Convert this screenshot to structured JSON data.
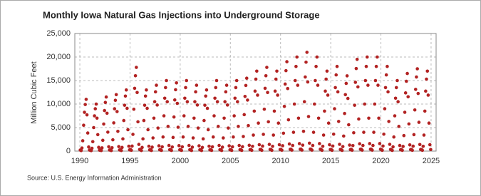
{
  "chart_data": {
    "type": "scatter",
    "title": "Monthly Iowa Natural Gas Injections into Underground Storage",
    "y_label": "Million Cubic Feet",
    "source": "Source: U.S. Energy Information Administration",
    "color": "#b22222",
    "grid": true,
    "xlim": [
      1989.5,
      2025.5
    ],
    "xticks": [
      1990,
      1995,
      2000,
      2005,
      2010,
      2015,
      2020,
      2025
    ],
    "ylim": [
      0,
      25000
    ],
    "yticks": [
      0,
      {
        "value": 5000,
        "label": "5,000"
      },
      {
        "value": 10000,
        "label": "10,000"
      },
      {
        "value": 15000,
        "label": "15,000"
      },
      {
        "value": 20000,
        "label": "20,000"
      },
      {
        "value": 25000,
        "label": "25,000"
      }
    ],
    "x": [
      1990.04,
      1990.13,
      1990.21,
      1990.29,
      1990.38,
      1990.46,
      1990.54,
      1990.63,
      1990.71,
      1990.79,
      1990.88,
      1990.96,
      1991.04,
      1991.13,
      1991.21,
      1991.29,
      1991.38,
      1991.46,
      1991.54,
      1991.63,
      1991.71,
      1991.79,
      1991.88,
      1991.96,
      1992.04,
      1992.13,
      1992.21,
      1992.29,
      1992.38,
      1992.46,
      1992.54,
      1992.63,
      1992.71,
      1992.79,
      1992.88,
      1992.96,
      1993.04,
      1993.13,
      1993.21,
      1993.29,
      1993.38,
      1993.46,
      1993.54,
      1993.63,
      1993.71,
      1993.79,
      1993.88,
      1993.96,
      1994.04,
      1994.13,
      1994.21,
      1994.29,
      1994.38,
      1994.46,
      1994.54,
      1994.63,
      1994.71,
      1994.79,
      1994.88,
      1994.96,
      1995.04,
      1995.13,
      1995.21,
      1995.29,
      1995.38,
      1995.46,
      1995.54,
      1995.63,
      1995.71,
      1995.79,
      1995.88,
      1995.96,
      1996.04,
      1996.13,
      1996.21,
      1996.29,
      1996.38,
      1996.46,
      1996.54,
      1996.63,
      1996.71,
      1996.79,
      1996.88,
      1996.96,
      1997.04,
      1997.13,
      1997.21,
      1997.29,
      1997.38,
      1997.46,
      1997.54,
      1997.63,
      1997.71,
      1997.79,
      1997.88,
      1997.96,
      1998.04,
      1998.13,
      1998.21,
      1998.29,
      1998.38,
      1998.46,
      1998.54,
      1998.63,
      1998.71,
      1998.79,
      1998.88,
      1998.96,
      1999.04,
      1999.13,
      1999.21,
      1999.29,
      1999.38,
      1999.46,
      1999.54,
      1999.63,
      1999.71,
      1999.79,
      1999.88,
      1999.96,
      2000.04,
      2000.13,
      2000.21,
      2000.29,
      2000.38,
      2000.46,
      2000.54,
      2000.63,
      2000.71,
      2000.79,
      2000.88,
      2000.96,
      2001.04,
      2001.13,
      2001.21,
      2001.29,
      2001.38,
      2001.46,
      2001.54,
      2001.63,
      2001.71,
      2001.79,
      2001.88,
      2001.96,
      2002.04,
      2002.13,
      2002.21,
      2002.29,
      2002.38,
      2002.46,
      2002.54,
      2002.63,
      2002.71,
      2002.79,
      2002.88,
      2002.96,
      2003.04,
      2003.13,
      2003.21,
      2003.29,
      2003.38,
      2003.46,
      2003.54,
      2003.63,
      2003.71,
      2003.79,
      2003.88,
      2003.96,
      2004.04,
      2004.13,
      2004.21,
      2004.29,
      2004.38,
      2004.46,
      2004.54,
      2004.63,
      2004.71,
      2004.79,
      2004.88,
      2004.96,
      2005.04,
      2005.13,
      2005.21,
      2005.29,
      2005.38,
      2005.46,
      2005.54,
      2005.63,
      2005.71,
      2005.79,
      2005.88,
      2005.96,
      2006.04,
      2006.13,
      2006.21,
      2006.29,
      2006.38,
      2006.46,
      2006.54,
      2006.63,
      2006.71,
      2006.79,
      2006.88,
      2006.96,
      2007.04,
      2007.13,
      2007.21,
      2007.29,
      2007.38,
      2007.46,
      2007.54,
      2007.63,
      2007.71,
      2007.79,
      2007.88,
      2007.96,
      2008.04,
      2008.13,
      2008.21,
      2008.29,
      2008.38,
      2008.46,
      2008.54,
      2008.63,
      2008.71,
      2008.79,
      2008.88,
      2008.96,
      2009.04,
      2009.13,
      2009.21,
      2009.29,
      2009.38,
      2009.46,
      2009.54,
      2009.63,
      2009.71,
      2009.79,
      2009.88,
      2009.96,
      2010.04,
      2010.13,
      2010.21,
      2010.29,
      2010.38,
      2010.46,
      2010.54,
      2010.63,
      2010.71,
      2010.79,
      2010.88,
      2010.96,
      2011.04,
      2011.13,
      2011.21,
      2011.29,
      2011.38,
      2011.46,
      2011.54,
      2011.63,
      2011.71,
      2011.79,
      2011.88,
      2011.96,
      2012.04,
      2012.13,
      2012.21,
      2012.29,
      2012.38,
      2012.46,
      2012.54,
      2012.63,
      2012.71,
      2012.79,
      2012.88,
      2012.96,
      2013.04,
      2013.13,
      2013.21,
      2013.29,
      2013.38,
      2013.46,
      2013.54,
      2013.63,
      2013.71,
      2013.79,
      2013.88,
      2013.96,
      2014.04,
      2014.13,
      2014.21,
      2014.29,
      2014.38,
      2014.46,
      2014.54,
      2014.63,
      2014.71,
      2014.79,
      2014.88,
      2014.96,
      2015.04,
      2015.13,
      2015.21,
      2015.29,
      2015.38,
      2015.46,
      2015.54,
      2015.63,
      2015.71,
      2015.79,
      2015.88,
      2015.96,
      2016.04,
      2016.13,
      2016.21,
      2016.29,
      2016.38,
      2016.46,
      2016.54,
      2016.63,
      2016.71,
      2016.79,
      2016.88,
      2016.96,
      2017.04,
      2017.13,
      2017.21,
      2017.29,
      2017.38,
      2017.46,
      2017.54,
      2017.63,
      2017.71,
      2017.79,
      2017.88,
      2017.96,
      2018.04,
      2018.13,
      2018.21,
      2018.29,
      2018.38,
      2018.46,
      2018.54,
      2018.63,
      2018.71,
      2018.79,
      2018.88,
      2018.96,
      2019.04,
      2019.13,
      2019.21,
      2019.29,
      2019.38,
      2019.46,
      2019.54,
      2019.63,
      2019.71,
      2019.79,
      2019.88,
      2019.96,
      2020.04,
      2020.13,
      2020.21,
      2020.29,
      2020.38,
      2020.46,
      2020.54,
      2020.63,
      2020.71,
      2020.79,
      2020.88,
      2020.96,
      2021.04,
      2021.13,
      2021.21,
      2021.29,
      2021.38,
      2021.46,
      2021.54,
      2021.63,
      2021.71,
      2021.79,
      2021.88,
      2021.96,
      2022.04,
      2022.13,
      2022.21,
      2022.29,
      2022.38,
      2022.46,
      2022.54,
      2022.63,
      2022.71,
      2022.79,
      2022.88,
      2022.96,
      2023.04,
      2023.13,
      2023.21,
      2023.29,
      2023.38,
      2023.46,
      2023.54,
      2023.63,
      2023.71,
      2023.79,
      2023.88,
      2023.96,
      2024.04,
      2024.13,
      2024.21,
      2024.29,
      2024.38,
      2024.46,
      2024.54,
      2024.63,
      2024.71,
      2024.79,
      2024.88,
      2024.96
    ],
    "values": [
      220,
      110,
      660,
      2200,
      5500,
      8250,
      9900,
      11000,
      7700,
      3850,
      880,
      220,
      200,
      100,
      600,
      2000,
      5000,
      7500,
      9000,
      10000,
      7000,
      3500,
      800,
      200,
      230,
      115,
      690,
      2300,
      5750,
      8625,
      10350,
      11500,
      8050,
      4025,
      920,
      230,
      240,
      120,
      720,
      2400,
      6000,
      9000,
      10800,
      12000,
      8400,
      4200,
      960,
      240,
      260,
      130,
      780,
      2600,
      6500,
      9750,
      11700,
      13000,
      9100,
      4550,
      1040,
      260,
      356,
      178,
      1068,
      3560,
      8900,
      13350,
      16020,
      17800,
      12460,
      6230,
      1424,
      356,
      260,
      130,
      780,
      2600,
      6500,
      9750,
      11700,
      13000,
      9100,
      4550,
      1040,
      260,
      280,
      140,
      840,
      2800,
      7000,
      10500,
      12600,
      14000,
      9800,
      4900,
      1120,
      280,
      300,
      150,
      900,
      3000,
      7500,
      11250,
      13500,
      15000,
      10500,
      5250,
      1200,
      300,
      290,
      145,
      870,
      2900,
      7250,
      10875,
      13050,
      14500,
      10150,
      5075,
      1160,
      290,
      300,
      150,
      900,
      3000,
      7500,
      11250,
      13500,
      15000,
      10500,
      5250,
      1200,
      300,
      280,
      140,
      840,
      2800,
      7000,
      10500,
      12600,
      14000,
      9800,
      4900,
      1120,
      280,
      260,
      130,
      780,
      2600,
      6500,
      9750,
      11700,
      13000,
      9100,
      4550,
      1040,
      260,
      300,
      150,
      900,
      3000,
      7500,
      11250,
      13500,
      15000,
      10500,
      5250,
      1200,
      300,
      280,
      140,
      840,
      2800,
      7000,
      10500,
      12600,
      14000,
      9800,
      4900,
      1120,
      280,
      300,
      150,
      900,
      3000,
      7500,
      11250,
      13500,
      15000,
      10500,
      5250,
      1200,
      300,
      310,
      155,
      930,
      3100,
      7750,
      11625,
      13950,
      15500,
      10850,
      5425,
      1240,
      310,
      340,
      170,
      1020,
      3400,
      8500,
      12750,
      15300,
      17000,
      11900,
      5950,
      1360,
      340,
      356,
      178,
      1068,
      3560,
      8900,
      13350,
      16020,
      17800,
      12460,
      6230,
      1424,
      356,
      340,
      170,
      1020,
      3400,
      8500,
      12750,
      15300,
      17000,
      11900,
      5950,
      1360,
      340,
      380,
      190,
      1140,
      3800,
      9500,
      14250,
      17100,
      19000,
      13300,
      6650,
      1520,
      380,
      400,
      200,
      1200,
      4000,
      10000,
      15000,
      18000,
      20000,
      14000,
      7000,
      1600,
      400,
      420,
      210,
      1260,
      4200,
      10500,
      15750,
      18900,
      21000,
      14700,
      7350,
      1680,
      420,
      400,
      200,
      1200,
      4000,
      10000,
      15000,
      18000,
      20000,
      14000,
      7000,
      1600,
      400,
      340,
      170,
      1020,
      3400,
      8500,
      12750,
      15300,
      17000,
      11900,
      5950,
      1360,
      340,
      360,
      180,
      1080,
      3600,
      9000,
      13500,
      16200,
      18000,
      12600,
      6300,
      1440,
      360,
      320,
      160,
      960,
      3200,
      8000,
      12000,
      14400,
      16000,
      11200,
      5600,
      1280,
      320,
      390,
      195,
      1170,
      3900,
      9750,
      14625,
      17550,
      19500,
      13650,
      6825,
      1560,
      390,
      400,
      200,
      1200,
      4000,
      10000,
      15000,
      18000,
      20000,
      14000,
      7000,
      1600,
      400,
      400,
      200,
      1200,
      4000,
      10000,
      15000,
      18000,
      20000,
      14000,
      7000,
      1600,
      400,
      360,
      180,
      1080,
      3600,
      9000,
      13500,
      16200,
      18000,
      12600,
      6300,
      1440,
      360,
      300,
      150,
      900,
      3000,
      7500,
      11250,
      13500,
      15000,
      10500,
      5250,
      1200,
      300,
      330,
      165,
      990,
      3300,
      8250,
      12375,
      14850,
      16500,
      11550,
      5775,
      1320,
      330,
      350,
      175,
      1050,
      3500,
      8750,
      13125,
      15750,
      17500,
      12250,
      6125,
      1400,
      350,
      340,
      170,
      1020,
      3400,
      8500,
      12750,
      15300,
      17000,
      11900,
      5950,
      1360,
      340
    ]
  }
}
